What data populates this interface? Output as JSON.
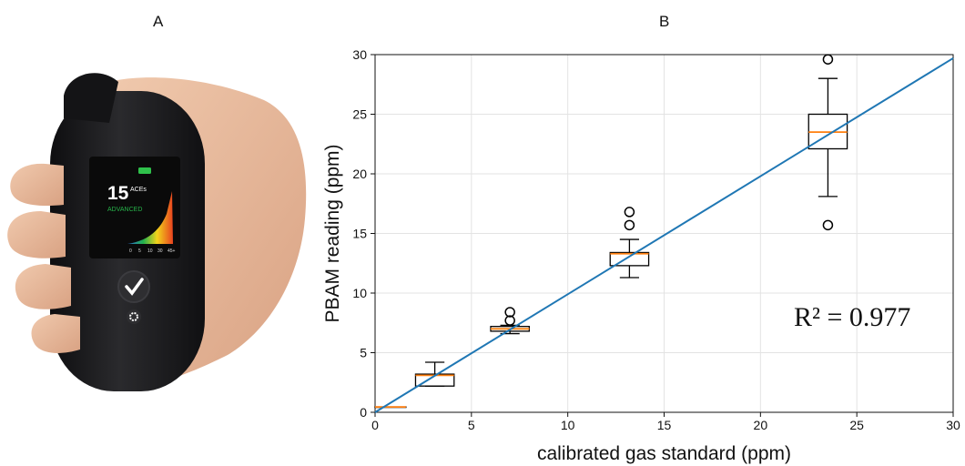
{
  "panels": {
    "a": "A",
    "b": "B"
  },
  "device": {
    "screen_value": "15",
    "screen_unit": "ACEs",
    "screen_level": "ADVANCED",
    "screen_scale": [
      "0",
      "5",
      "10",
      "30",
      "45+"
    ],
    "colors": {
      "body": "#1c1c1e",
      "skin": "#e6b79b",
      "level_text": "#27b34a",
      "battery": "#2fc14b"
    }
  },
  "chart_data": {
    "type": "box",
    "xlabel": "calibrated gas standard (ppm)",
    "ylabel": "PBAM reading (ppm)",
    "xlim": [
      0,
      30
    ],
    "ylim": [
      0,
      30
    ],
    "xticks": [
      "0",
      "5",
      "10",
      "15",
      "20",
      "25",
      "30"
    ],
    "yticks": [
      "0",
      "5",
      "10",
      "15",
      "20",
      "25",
      "30"
    ],
    "grid": true,
    "boxes": [
      {
        "x": 0.8,
        "width": 1.6,
        "q1": 0.45,
        "median": 0.45,
        "q3": 0.45,
        "whisker_low": 0.45,
        "whisker_high": 0.45,
        "outliers": []
      },
      {
        "x": 3.1,
        "width": 2.0,
        "q1": 2.2,
        "median": 3.1,
        "q3": 3.2,
        "whisker_low": 2.2,
        "whisker_high": 4.2,
        "outliers": []
      },
      {
        "x": 7.0,
        "width": 2.0,
        "q1": 6.8,
        "median": 7.0,
        "q3": 7.2,
        "whisker_low": 6.6,
        "whisker_high": 7.3,
        "outliers": [
          7.7,
          8.4
        ]
      },
      {
        "x": 13.2,
        "width": 2.0,
        "q1": 12.3,
        "median": 13.3,
        "q3": 13.4,
        "whisker_low": 11.3,
        "whisker_high": 14.5,
        "outliers": [
          15.7,
          16.8
        ]
      },
      {
        "x": 23.5,
        "width": 2.0,
        "q1": 22.1,
        "median": 23.5,
        "q3": 25.0,
        "whisker_low": 18.1,
        "whisker_high": 28.0,
        "outliers": [
          15.7,
          29.6
        ]
      }
    ],
    "fit_line": {
      "x": [
        0,
        30
      ],
      "y": [
        0,
        29.7
      ]
    },
    "annotation": {
      "text": "R² = 0.977",
      "x": 27.8,
      "y": 8.0
    },
    "colors": {
      "fit": "#1f77b4",
      "median": "#ff7f0e",
      "box": "#000000",
      "grid": "#e3e3e3"
    }
  }
}
